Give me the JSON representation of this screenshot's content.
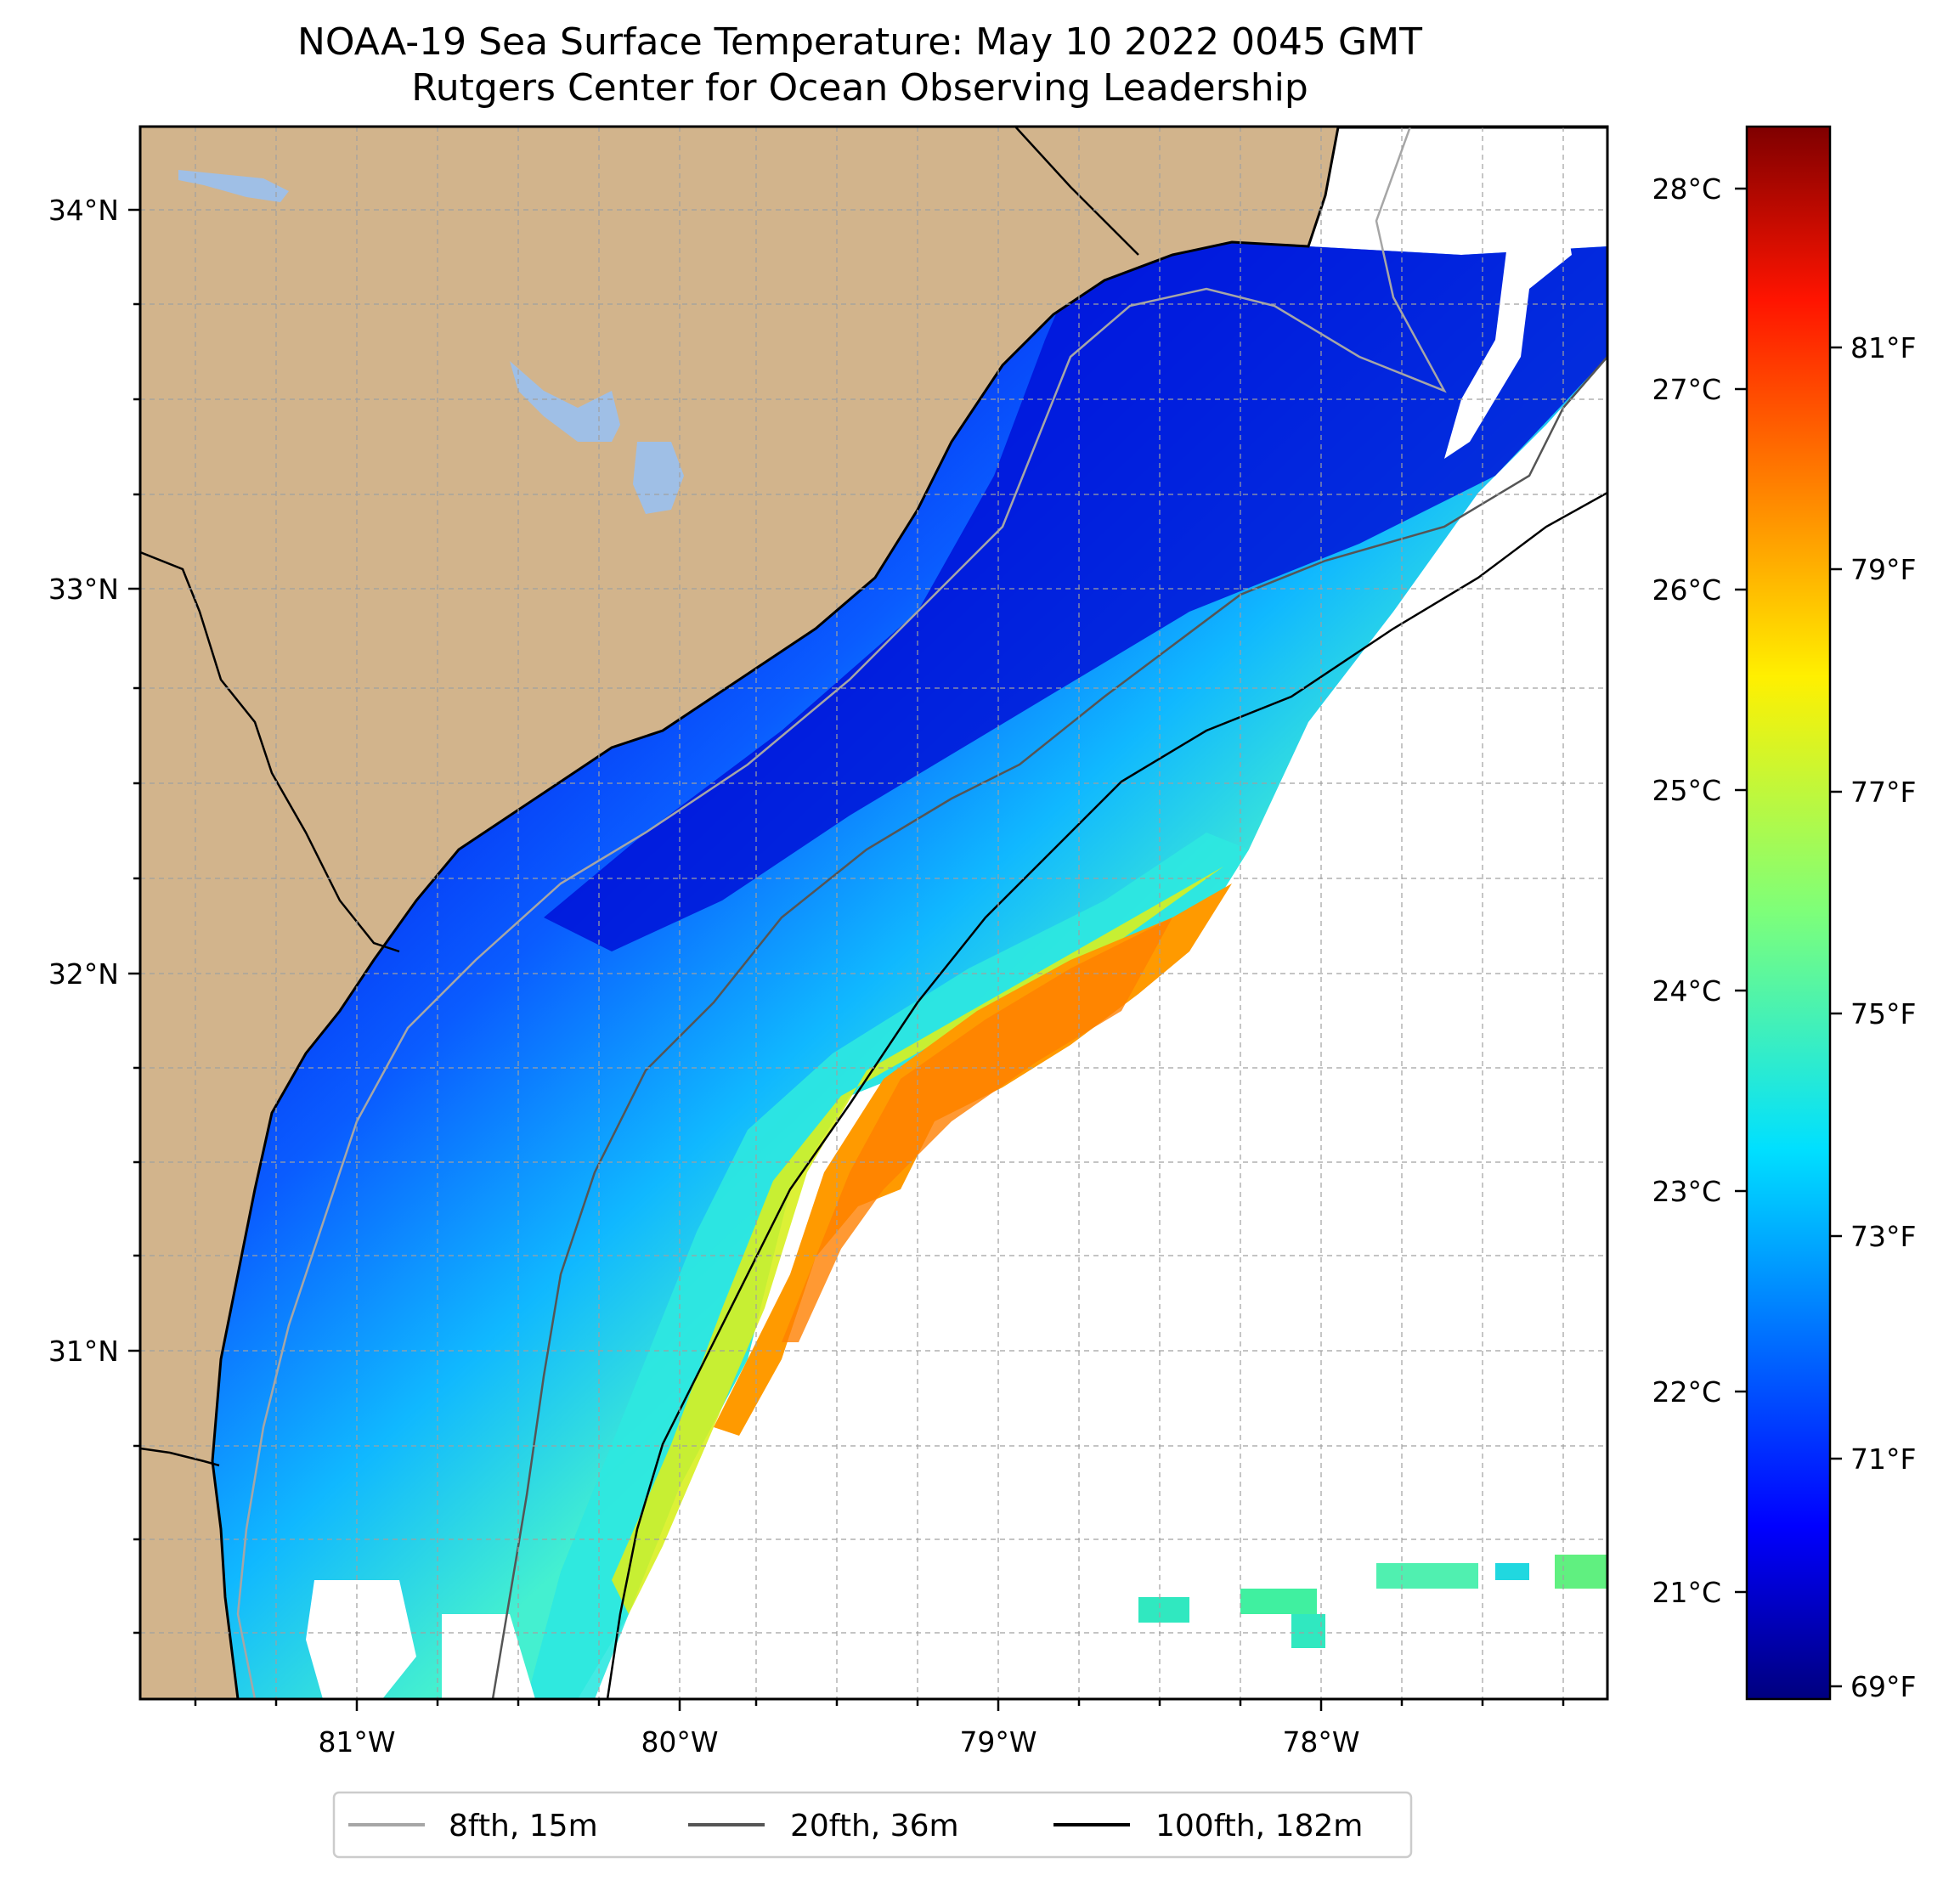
{
  "title": {
    "line1": "NOAA-19 Sea Surface Temperature: May 10 2022 0045 GMT",
    "line2": "Rutgers Center for Ocean Observing Leadership"
  },
  "axes": {
    "lon_labels": [
      "81°W",
      "80°W",
      "79°W",
      "78°W"
    ],
    "lat_labels": [
      "34°N",
      "33°N",
      "32°N",
      "31°N"
    ]
  },
  "colorbar": {
    "celsius_labels": [
      "28°C",
      "27°C",
      "26°C",
      "25°C",
      "24°C",
      "23°C",
      "22°C",
      "21°C"
    ],
    "fahrenheit_labels": [
      "81°F",
      "79°F",
      "77°F",
      "75°F",
      "73°F",
      "71°F",
      "69°F"
    ]
  },
  "legend": {
    "items": [
      {
        "label": "8fth, 15m",
        "color": "#a6a6a6"
      },
      {
        "label": "20fth, 36m",
        "color": "#555555"
      },
      {
        "label": "100fth, 182m",
        "color": "#000000"
      }
    ]
  },
  "colors": {
    "land": "#d2b48c",
    "lakes": "#9fbfe6",
    "colormap": "jet"
  }
}
